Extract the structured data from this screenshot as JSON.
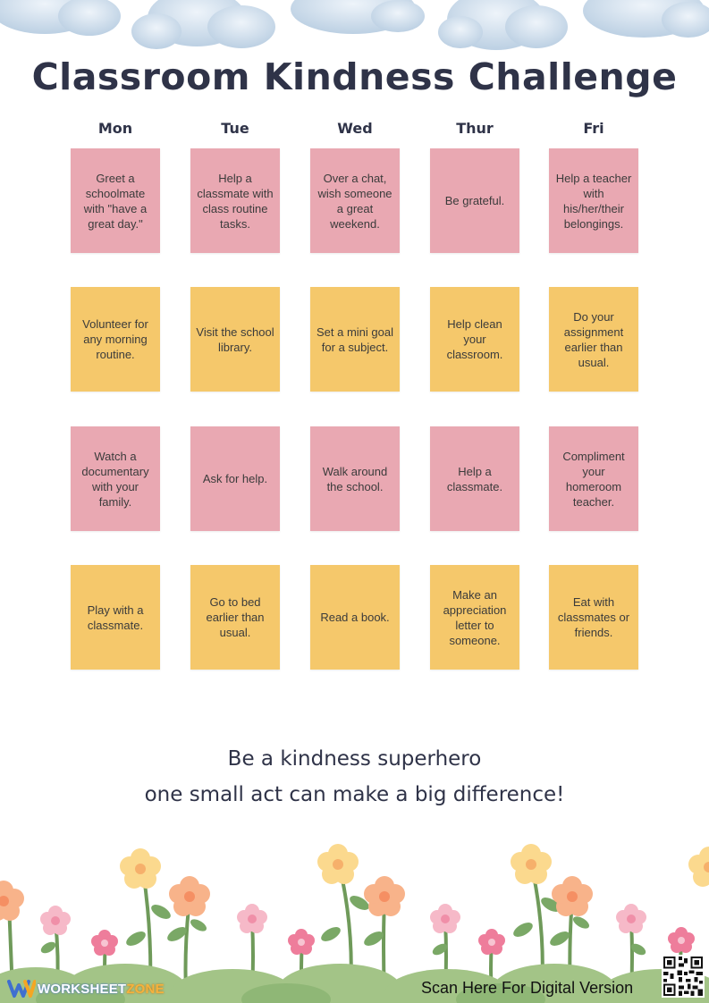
{
  "title": "Classroom Kindness Challenge",
  "days": [
    "Mon",
    "Tue",
    "Wed",
    "Thur",
    "Fri"
  ],
  "rows": [
    {
      "color": "#e9a8b2",
      "cells": [
        "Greet a schoolmate with \"have a great day.\"",
        "Help a classmate with class routine tasks.",
        "Over a chat, wish someone a great weekend.",
        "Be grateful.",
        "Help a teacher with his/her/their belongings."
      ]
    },
    {
      "color": "#f5c86b",
      "cells": [
        "Volunteer for any morning routine.",
        "Visit the school library.",
        "Set a mini goal for a subject.",
        "Help clean your classroom.",
        "Do your assignment earlier than usual."
      ]
    },
    {
      "color": "#e9a8b2",
      "cells": [
        "Watch a documentary with your family.",
        "Ask for help.",
        "Walk around the school.",
        "Help a classmate.",
        "Compliment your homeroom teacher."
      ]
    },
    {
      "color": "#f5c86b",
      "cells": [
        "Play with a classmate.",
        "Go to bed earlier than usual.",
        "Read a book.",
        "Make an appreciation letter to someone.",
        "Eat with classmates or friends."
      ]
    }
  ],
  "slogan": {
    "line1": "Be a kindness superhero",
    "line2": "one small act can make a big difference!"
  },
  "footer": {
    "logo_prefix": "WORKSHEET",
    "logo_suffix": "ZONE",
    "scan_text": "Scan Here For Digital Version"
  },
  "icons": [
    "cloud-icon",
    "flower-icon",
    "worksheetzone-logo-icon",
    "qr-code-icon"
  ]
}
